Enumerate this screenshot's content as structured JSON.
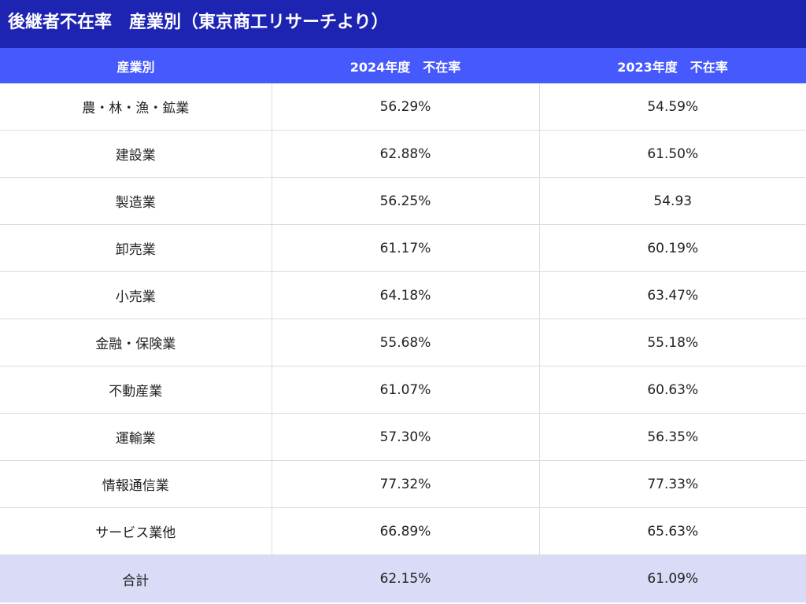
{
  "title": "後継者不在率　産業別（東京商工リサーチより）",
  "table": {
    "headers": [
      "産業別",
      "2024年度　不在率",
      "2023年度　不在率"
    ],
    "rows": [
      [
        "農・林・漁・鉱業",
        "56.29%",
        "54.59%"
      ],
      [
        "建設業",
        "62.88%",
        "61.50%"
      ],
      [
        "製造業",
        "56.25%",
        "54.93"
      ],
      [
        "卸売業",
        "61.17%",
        "60.19%"
      ],
      [
        "小売業",
        "64.18%",
        "63.47%"
      ],
      [
        "金融・保険業",
        "55.68%",
        "55.18%"
      ],
      [
        "不動産業",
        "61.07%",
        "60.63%"
      ],
      [
        "運輸業",
        "57.30%",
        "56.35%"
      ],
      [
        "情報通信業",
        "77.32%",
        "77.33%"
      ],
      [
        "サービス業他",
        "66.89%",
        "65.63%"
      ]
    ],
    "total": [
      "合計",
      "62.15%",
      "61.09%"
    ]
  },
  "colors": {
    "title_bg": "#1e24b2",
    "header_bg": "#4659fd",
    "total_bg": "#d9dbf7"
  }
}
